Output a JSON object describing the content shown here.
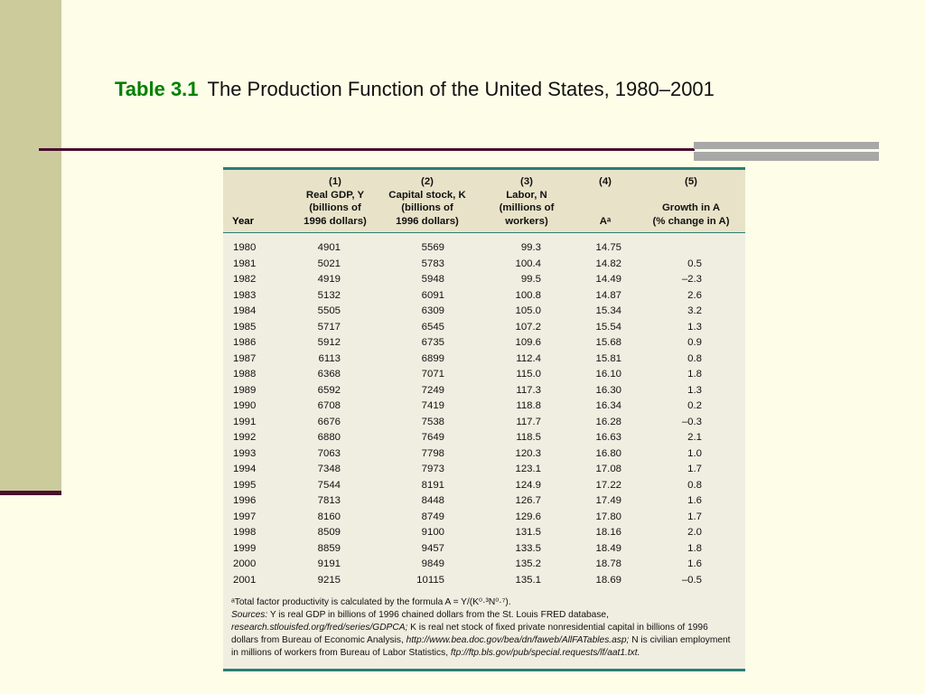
{
  "slide": {
    "table_number": "Table 3.1",
    "title": "The Production Function of the United States, 1980–2001"
  },
  "table": {
    "headers": {
      "year": "Year",
      "col1": [
        "(1)",
        "Real GDP, Y",
        "(billions of",
        "1996 dollars)"
      ],
      "col2": [
        "(2)",
        "Capital stock, K",
        "(billions of",
        "1996 dollars)"
      ],
      "col3": [
        "(3)",
        "Labor, N",
        "(millions of",
        "workers)"
      ],
      "col4": [
        "(4)",
        "",
        "",
        "Aᵃ"
      ],
      "col5": [
        "(5)",
        "",
        "Growth in A",
        "(% change in A)"
      ]
    },
    "rows": [
      [
        "1980",
        "4901",
        "5569",
        "99.3",
        "14.75",
        ""
      ],
      [
        "1981",
        "5021",
        "5783",
        "100.4",
        "14.82",
        "0.5"
      ],
      [
        "1982",
        "4919",
        "5948",
        "99.5",
        "14.49",
        "–2.3"
      ],
      [
        "1983",
        "5132",
        "6091",
        "100.8",
        "14.87",
        "2.6"
      ],
      [
        "1984",
        "5505",
        "6309",
        "105.0",
        "15.34",
        "3.2"
      ],
      [
        "1985",
        "5717",
        "6545",
        "107.2",
        "15.54",
        "1.3"
      ],
      [
        "1986",
        "5912",
        "6735",
        "109.6",
        "15.68",
        "0.9"
      ],
      [
        "1987",
        "6113",
        "6899",
        "112.4",
        "15.81",
        "0.8"
      ],
      [
        "1988",
        "6368",
        "7071",
        "115.0",
        "16.10",
        "1.8"
      ],
      [
        "1989",
        "6592",
        "7249",
        "117.3",
        "16.30",
        "1.3"
      ],
      [
        "1990",
        "6708",
        "7419",
        "118.8",
        "16.34",
        "0.2"
      ],
      [
        "1991",
        "6676",
        "7538",
        "117.7",
        "16.28",
        "–0.3"
      ],
      [
        "1992",
        "6880",
        "7649",
        "118.5",
        "16.63",
        "2.1"
      ],
      [
        "1993",
        "7063",
        "7798",
        "120.3",
        "16.80",
        "1.0"
      ],
      [
        "1994",
        "7348",
        "7973",
        "123.1",
        "17.08",
        "1.7"
      ],
      [
        "1995",
        "7544",
        "8191",
        "124.9",
        "17.22",
        "0.8"
      ],
      [
        "1996",
        "7813",
        "8448",
        "126.7",
        "17.49",
        "1.6"
      ],
      [
        "1997",
        "8160",
        "8749",
        "129.6",
        "17.80",
        "1.7"
      ],
      [
        "1998",
        "8509",
        "9100",
        "131.5",
        "18.16",
        "2.0"
      ],
      [
        "1999",
        "8859",
        "9457",
        "133.5",
        "18.49",
        "1.8"
      ],
      [
        "2000",
        "9191",
        "9849",
        "135.2",
        "18.78",
        "1.6"
      ],
      [
        "2001",
        "9215",
        "10115",
        "135.1",
        "18.69",
        "–0.5"
      ]
    ],
    "notes": {
      "footnote": "ᵃTotal factor productivity is calculated by the formula A = Y/(K⁰·³N⁰·⁷).",
      "sources_label": "Sources:",
      "sources_1": " Y is real GDP in billions of 1996 chained dollars from the St. Louis FRED database, ",
      "sources_url1": "research.stlouisfed.org/fred/series/GDPCA;",
      "sources_2": " K is real net stock of fixed private nonresidential capital in billions of 1996 dollars from Bureau of Economic Analysis, ",
      "sources_url2": "http://www.bea.doc.gov/bea/dn/faweb/AllFATables.asp;",
      "sources_3": " N is civilian employment in millions of workers from Bureau of Labor Statistics, ",
      "sources_url3": "ftp://ftp.bls.gov/pub/special.requests/lf/aat1.txt."
    }
  }
}
